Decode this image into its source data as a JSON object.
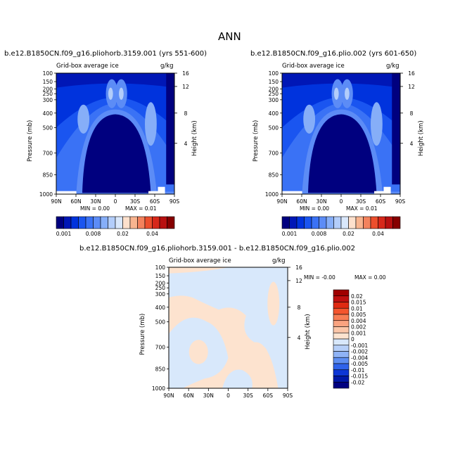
{
  "page": {
    "title": "ANN"
  },
  "chart_data": [
    {
      "type": "heatmap",
      "title": "b.e12.B1850CN.f09_g16.pliohorb.3159.001 (yrs 551-600)",
      "subtitle": "Grid-box average ice",
      "units": "g/kg",
      "ylabel": "Pressure (mb)",
      "y2label": "Height (km)",
      "x_ticks": [
        "90N",
        "60N",
        "30N",
        "0",
        "30S",
        "60S",
        "90S"
      ],
      "y_ticks": [
        "100",
        "150",
        "200",
        "250",
        "300",
        "400",
        "500",
        "700",
        "850",
        "1000"
      ],
      "y2_ticks": [
        "16",
        "12",
        "8",
        "4"
      ],
      "min_text": "MIN =   0.00",
      "max_text": "MAX =   0.01",
      "colorbar": {
        "levels": [
          "0.001",
          "0.008",
          "0.02",
          "0.04"
        ],
        "colors": [
          "#00007f",
          "#0017b6",
          "#0033dd",
          "#1a55f0",
          "#3a72f5",
          "#5c8cf6",
          "#86aef8",
          "#b3cdfa",
          "#d9e7fb",
          "#fde0cc",
          "#f8b48f",
          "#f3825d",
          "#ec4f2d",
          "#d7281a",
          "#b81010",
          "#860000"
        ]
      }
    },
    {
      "type": "heatmap",
      "title": "b.e12.B1850CN.f09_g16.plio.002 (yrs 601-650)",
      "subtitle": "Grid-box average ice",
      "units": "g/kg",
      "ylabel": "Pressure (mb)",
      "y2label": "Height (km)",
      "x_ticks": [
        "90N",
        "60N",
        "30N",
        "0",
        "30S",
        "60S",
        "90S"
      ],
      "y_ticks": [
        "100",
        "150",
        "200",
        "250",
        "300",
        "400",
        "500",
        "700",
        "850",
        "1000"
      ],
      "y2_ticks": [
        "16",
        "12",
        "8",
        "4"
      ],
      "min_text": "MIN =   0.00",
      "max_text": "MAX =   0.01",
      "colorbar": {
        "levels": [
          "0.001",
          "0.008",
          "0.02",
          "0.04"
        ]
      }
    },
    {
      "type": "heatmap",
      "title": "b.e12.B1850CN.f09_g16.pliohorb.3159.001 - b.e12.B1850CN.f09_g16.plio.002",
      "subtitle": "Grid-box average ice",
      "units": "g/kg",
      "ylabel": "Pressure (mb)",
      "y2label": "Height (km)",
      "x_ticks": [
        "90N",
        "60N",
        "30N",
        "0",
        "30S",
        "60S",
        "90S"
      ],
      "y_ticks": [
        "100",
        "150",
        "200",
        "250",
        "300",
        "400",
        "500",
        "700",
        "850",
        "1000"
      ],
      "y2_ticks": [
        "16",
        "12",
        "8",
        "4"
      ],
      "min_text": "MIN =  -0.00",
      "max_text": "MAX =   0.00",
      "colorbar": {
        "levels": [
          "0.02",
          "0.015",
          "0.01",
          "0.005",
          "0.004",
          "0.002",
          "0.001",
          "0",
          "-0.001",
          "-0.002",
          "-0.004",
          "-0.005",
          "-0.01",
          "-0.015",
          "-0.02"
        ],
        "colors": [
          "#a00000",
          "#c01010",
          "#e02a12",
          "#f4552e",
          "#f77d55",
          "#f9a380",
          "#fbc6a8",
          "#fde3cf",
          "#d8e8fb",
          "#b6cff8",
          "#8fb3f6",
          "#5e8ef2",
          "#2f63eb",
          "#0d36d6",
          "#0018a8",
          "#000080"
        ]
      }
    }
  ]
}
